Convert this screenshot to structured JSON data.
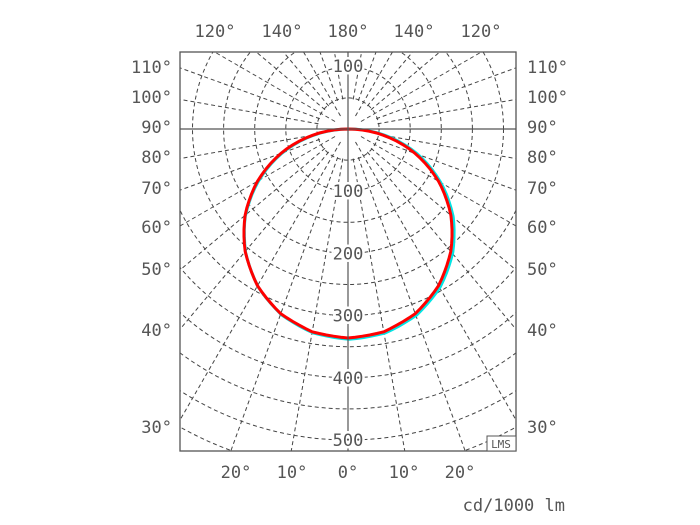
{
  "chart_data": {
    "type": "polar",
    "unit_label": "cd/1000 lm",
    "badge": "LMS",
    "radial_ticks": [
      100,
      200,
      300,
      400,
      500
    ],
    "radial_top_label": "100",
    "rlim": [
      0,
      500
    ],
    "grid": true,
    "top_angle_labels": [
      "120°",
      "140°",
      "180°",
      "140°",
      "120°"
    ],
    "bottom_angle_labels": [
      "20°",
      "10°",
      "0°",
      "10°",
      "20°"
    ],
    "left_angle_labels": [
      "110°",
      "100°",
      "90°",
      "80°",
      "70°",
      "60°",
      "50°",
      "40°",
      "30°"
    ],
    "right_angle_labels": [
      "110°",
      "100°",
      "90°",
      "80°",
      "70°",
      "60°",
      "50°",
      "40°",
      "30°"
    ],
    "gamma": [
      0,
      10,
      20,
      30,
      40,
      50,
      60,
      70,
      80,
      90
    ],
    "series": [
      {
        "color": "#00e5e5",
        "values": [
          338,
          333,
          318,
          293,
          259,
          218,
          169,
          116,
          59,
          0
        ]
      },
      {
        "color": "#ff0000",
        "values": [
          336,
          331,
          316,
          291,
          257,
          216,
          168,
          115,
          58,
          0
        ]
      }
    ]
  }
}
